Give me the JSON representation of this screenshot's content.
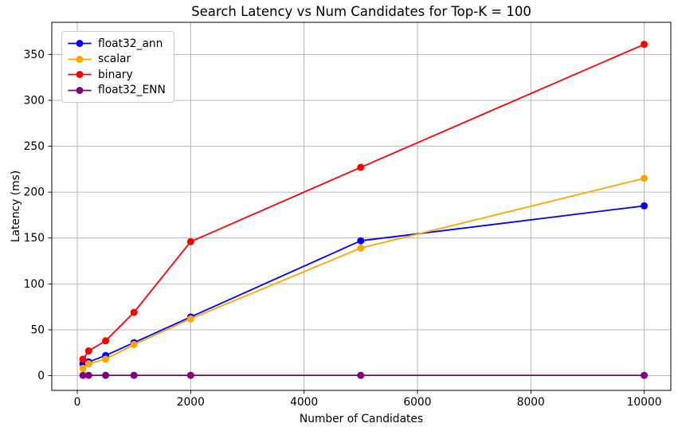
{
  "figure": {
    "title": "Search Latency vs Num Candidates for Top-K = 100",
    "xlabel": "Number of Candidates",
    "ylabel": "Latency (ms)"
  },
  "chart_data": {
    "type": "line",
    "title": "Search Latency vs Num Candidates for Top-K = 100",
    "xlabel": "Number of Candidates",
    "ylabel": "Latency (ms)",
    "x": [
      100,
      200,
      500,
      1000,
      2000,
      5000,
      10000
    ],
    "series": [
      {
        "name": "float32_ann",
        "color": "#0000ff",
        "values": [
          13,
          15,
          22,
          36,
          64,
          147,
          185
        ]
      },
      {
        "name": "scalar",
        "color": "#ffa500",
        "values": [
          8,
          13,
          18,
          34,
          62,
          139,
          215
        ]
      },
      {
        "name": "binary",
        "color": "#ff0000",
        "values": [
          18,
          27,
          38,
          69,
          146,
          227,
          361
        ]
      },
      {
        "name": "float32_ENN",
        "color": "#800080",
        "values": [
          0.4,
          0.4,
          0.4,
          0.4,
          0.4,
          0.4,
          0.4
        ]
      }
    ],
    "x_ticks": [
      0,
      2000,
      4000,
      6000,
      8000,
      10000
    ],
    "y_ticks": [
      0,
      50,
      100,
      150,
      200,
      250,
      300,
      350
    ],
    "xlim": [
      -450,
      10470
    ],
    "ylim": [
      -16,
      385
    ],
    "grid": true,
    "grid_color": "#b0b0b0",
    "axes_color": "#000000",
    "background": "#ffffff",
    "legend_position": "upper-left",
    "marker": "circle",
    "line_width": 1.8,
    "marker_radius": 4.5
  }
}
